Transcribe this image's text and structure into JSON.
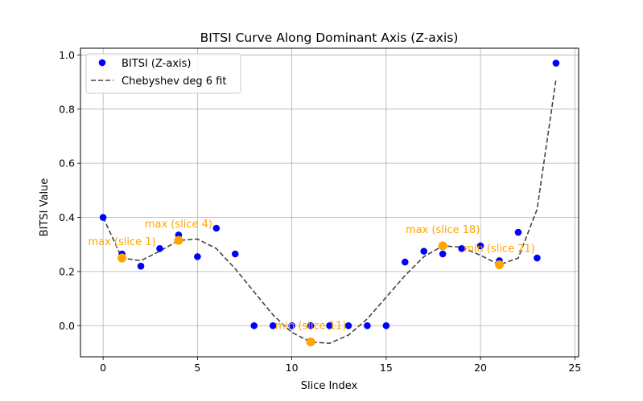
{
  "chart_data": {
    "type": "scatter",
    "title": "BITSI Curve Along Dominant Axis (Z-axis)",
    "xlabel": "Slice Index",
    "ylabel": "BITSI Value",
    "xlim": [
      -1.2,
      25.2
    ],
    "ylim": [
      -0.115,
      1.025
    ],
    "xticks": [
      0,
      5,
      10,
      15,
      20,
      25
    ],
    "xtick_labels": [
      "0",
      "5",
      "10",
      "15",
      "20",
      "25"
    ],
    "yticks": [
      0.0,
      0.2,
      0.4,
      0.6,
      0.8,
      1.0
    ],
    "ytick_labels": [
      "0.0",
      "0.2",
      "0.4",
      "0.6",
      "0.8",
      "1.0"
    ],
    "grid": true,
    "legend_position": "upper-left",
    "series": [
      {
        "name": "BITSI (Z-axis)",
        "kind": "points",
        "color": "#0000ff",
        "x": [
          0,
          1,
          2,
          3,
          4,
          5,
          6,
          7,
          8,
          9,
          10,
          11,
          12,
          13,
          14,
          15,
          16,
          17,
          18,
          19,
          20,
          21,
          22,
          23,
          24
        ],
        "y": [
          0.4,
          0.265,
          0.22,
          0.285,
          0.335,
          0.255,
          0.36,
          0.265,
          0.0,
          0.0,
          0.0,
          0.0,
          0.0,
          0.0,
          0.0,
          0.0,
          0.235,
          0.275,
          0.265,
          0.285,
          0.295,
          0.24,
          0.345,
          0.25,
          0.97
        ]
      },
      {
        "name": "Chebyshev deg 6 fit",
        "kind": "dashed-line",
        "color": "#444444",
        "x": [
          0,
          1,
          2,
          3,
          4,
          5,
          6,
          7,
          8,
          9,
          10,
          11,
          12,
          13,
          14,
          15,
          16,
          17,
          18,
          19,
          20,
          21,
          22,
          23,
          24
        ],
        "y": [
          0.4,
          0.25,
          0.24,
          0.275,
          0.315,
          0.32,
          0.285,
          0.21,
          0.125,
          0.04,
          -0.025,
          -0.06,
          -0.065,
          -0.035,
          0.025,
          0.105,
          0.185,
          0.255,
          0.295,
          0.29,
          0.26,
          0.225,
          0.25,
          0.43,
          0.91
        ]
      }
    ],
    "extrema_points": {
      "color": "#ffa500",
      "x": [
        1,
        4,
        11,
        18,
        21
      ],
      "y": [
        0.25,
        0.315,
        -0.06,
        0.295,
        0.225
      ]
    },
    "annotations": [
      {
        "text": "max (slice 1)",
        "x": 1,
        "y": 0.25,
        "color": "#ffa500"
      },
      {
        "text": "max (slice 4)",
        "x": 4,
        "y": 0.315,
        "color": "#ffa500"
      },
      {
        "text": "min (slice 11)",
        "x": 11,
        "y": -0.06,
        "color": "#ffa500"
      },
      {
        "text": "max (slice 18)",
        "x": 18,
        "y": 0.295,
        "color": "#ffa500"
      },
      {
        "text": "min (slice 21)",
        "x": 21,
        "y": 0.225,
        "color": "#ffa500"
      }
    ]
  }
}
